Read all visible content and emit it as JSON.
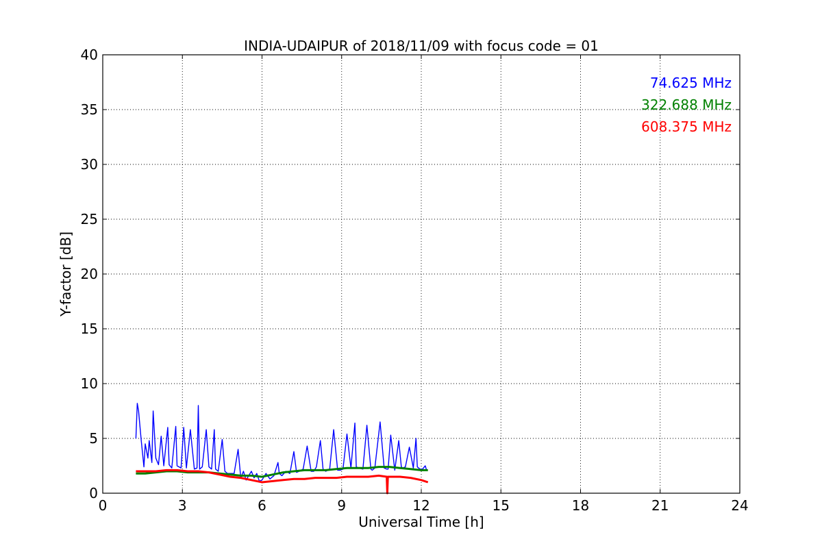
{
  "chart_data": {
    "type": "line",
    "title": "INDIA-UDAIPUR of 2018/11/09 with focus code = 01",
    "xlabel": "Universal Time [h]",
    "ylabel": "Y-factor [dB]",
    "xlim": [
      0,
      24
    ],
    "ylim": [
      0,
      40
    ],
    "xticks": [
      0,
      3,
      6,
      9,
      12,
      15,
      18,
      21,
      24
    ],
    "yticks": [
      0,
      5,
      10,
      15,
      20,
      25,
      30,
      35,
      40
    ],
    "xtick_labels": [
      "0",
      "3",
      "6",
      "9",
      "12",
      "15",
      "18",
      "21",
      "24"
    ],
    "ytick_labels": [
      "0",
      "5",
      "10",
      "15",
      "20",
      "25",
      "30",
      "35",
      "40"
    ],
    "grid": true,
    "legend_position": "top-right",
    "series": [
      {
        "name": "74.625 MHz",
        "color": "#0000ff",
        "x": [
          1.25,
          1.3,
          1.35,
          1.45,
          1.55,
          1.6,
          1.7,
          1.75,
          1.85,
          1.9,
          2.0,
          2.1,
          2.2,
          2.3,
          2.45,
          2.5,
          2.6,
          2.75,
          2.8,
          2.95,
          3.05,
          3.15,
          3.3,
          3.45,
          3.55,
          3.6,
          3.65,
          3.75,
          3.9,
          4.0,
          4.1,
          4.2,
          4.25,
          4.35,
          4.5,
          4.6,
          4.7,
          4.85,
          4.95,
          5.1,
          5.2,
          5.3,
          5.4,
          5.5,
          5.6,
          5.7,
          5.8,
          5.9,
          6.0,
          6.15,
          6.3,
          6.45,
          6.6,
          6.65,
          6.75,
          6.9,
          7.05,
          7.2,
          7.3,
          7.4,
          7.55,
          7.7,
          7.85,
          7.95,
          8.05,
          8.2,
          8.3,
          8.4,
          8.55,
          8.7,
          8.85,
          8.95,
          9.05,
          9.2,
          9.35,
          9.5,
          9.55,
          9.65,
          9.8,
          9.95,
          10.1,
          10.15,
          10.25,
          10.45,
          10.6,
          10.7,
          10.75,
          10.85,
          11.0,
          11.15,
          11.25,
          11.3,
          11.4,
          11.55,
          11.7,
          11.8,
          11.85,
          11.95,
          12.05,
          12.15,
          12.2
        ],
        "values": [
          5.0,
          8.2,
          7.5,
          4.8,
          2.4,
          4.5,
          3.2,
          4.8,
          2.8,
          7.5,
          3.2,
          2.6,
          5.2,
          2.5,
          6.0,
          2.6,
          2.3,
          6.1,
          2.5,
          2.3,
          6.0,
          2.3,
          5.8,
          2.2,
          2.3,
          8.0,
          2.2,
          2.4,
          5.8,
          2.4,
          2.2,
          5.8,
          2.2,
          2.0,
          4.9,
          2.0,
          1.8,
          1.8,
          1.8,
          4.0,
          1.4,
          2.0,
          1.2,
          1.6,
          2.0,
          1.4,
          1.8,
          1.1,
          1.2,
          1.8,
          1.3,
          1.6,
          2.8,
          1.8,
          1.6,
          2.0,
          1.8,
          3.8,
          1.9,
          2.0,
          2.2,
          4.3,
          2.0,
          2.0,
          2.4,
          4.8,
          2.2,
          2.0,
          2.2,
          5.8,
          2.1,
          2.1,
          2.2,
          5.4,
          2.3,
          6.4,
          2.4,
          2.3,
          2.2,
          6.2,
          2.2,
          2.1,
          2.3,
          6.5,
          2.3,
          2.2,
          2.2,
          5.3,
          2.1,
          4.8,
          2.4,
          2.3,
          2.4,
          4.2,
          2.3,
          5.0,
          2.4,
          2.2,
          2.2,
          2.5,
          2.1
        ]
      },
      {
        "name": "322.688 MHz",
        "color": "#008000",
        "x": [
          1.25,
          1.6,
          2.0,
          2.4,
          2.8,
          3.2,
          3.6,
          4.0,
          4.4,
          4.8,
          5.2,
          5.6,
          6.0,
          6.4,
          6.8,
          7.2,
          7.6,
          8.0,
          8.4,
          8.8,
          9.2,
          9.6,
          10.0,
          10.4,
          10.8,
          11.2,
          11.6,
          12.0,
          12.25
        ],
        "values": [
          1.8,
          1.8,
          1.9,
          2.0,
          2.0,
          1.9,
          1.9,
          1.9,
          1.8,
          1.7,
          1.6,
          1.6,
          1.5,
          1.7,
          1.9,
          2.0,
          2.1,
          2.1,
          2.1,
          2.2,
          2.3,
          2.3,
          2.3,
          2.4,
          2.4,
          2.3,
          2.2,
          2.1,
          2.1
        ]
      },
      {
        "name": "608.375 MHz",
        "color": "#ff0000",
        "x": [
          1.25,
          1.6,
          2.0,
          2.4,
          2.8,
          3.2,
          3.6,
          4.0,
          4.4,
          4.8,
          5.2,
          5.6,
          6.0,
          6.4,
          6.8,
          7.2,
          7.6,
          8.0,
          8.4,
          8.8,
          9.2,
          9.6,
          10.0,
          10.4,
          10.7,
          10.72,
          10.74,
          10.8,
          11.2,
          11.6,
          12.0,
          12.25
        ],
        "values": [
          2.0,
          2.0,
          2.0,
          2.1,
          2.1,
          2.0,
          2.0,
          1.9,
          1.7,
          1.5,
          1.4,
          1.2,
          1.0,
          1.1,
          1.2,
          1.3,
          1.3,
          1.4,
          1.4,
          1.4,
          1.5,
          1.5,
          1.5,
          1.6,
          1.5,
          0.0,
          1.5,
          1.5,
          1.5,
          1.4,
          1.2,
          1.0
        ]
      }
    ]
  }
}
